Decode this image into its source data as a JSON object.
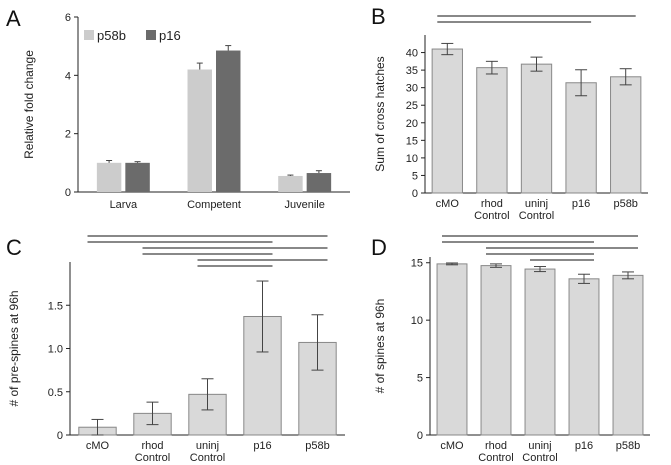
{
  "chart_data": [
    {
      "id": "A",
      "panel_letter": "A",
      "type": "bar",
      "ylabel": "Relative fold change",
      "ylim": [
        0,
        6
      ],
      "yticks": [
        "0",
        "2",
        "4",
        "6"
      ],
      "categories": [
        "Larva",
        "Competent",
        "Juvenile"
      ],
      "series": [
        {
          "name": "p58b",
          "color": "#cccccc",
          "values": [
            1.0,
            4.2,
            0.55
          ],
          "errors": [
            0.08,
            0.22,
            0.03
          ]
        },
        {
          "name": "p16",
          "color": "#6b6b6b",
          "values": [
            1.0,
            4.85,
            0.65
          ],
          "errors": [
            0.04,
            0.17,
            0.08
          ]
        }
      ],
      "legend": "top-left",
      "grid": false
    },
    {
      "id": "B",
      "panel_letter": "B",
      "type": "bar",
      "ylabel": "Sum of cross hatches",
      "ylim": [
        0,
        45
      ],
      "yticks": [
        "0",
        "5",
        "10",
        "15",
        "20",
        "25",
        "30",
        "35",
        "40"
      ],
      "categories": [
        [
          "cMO"
        ],
        [
          "rhod",
          "Control"
        ],
        [
          "uninj",
          "Control"
        ],
        [
          "p16"
        ],
        [
          "p58b"
        ]
      ],
      "series": [
        {
          "color": "#d9d9d9",
          "values": [
            41,
            35.7,
            36.7,
            31.4,
            33.1
          ],
          "errors": [
            1.6,
            1.8,
            2.0,
            3.7,
            2.3
          ]
        }
      ],
      "significance": [
        [
          0,
          4
        ],
        [
          0,
          3
        ]
      ],
      "grid": false
    },
    {
      "id": "C",
      "panel_letter": "C",
      "type": "bar",
      "ylabel": "# of pre-spines at 96h",
      "ylim": [
        0,
        2.0
      ],
      "yticks": [
        "0",
        "0.5",
        "1.0",
        "1.5"
      ],
      "categories": [
        [
          "cMO"
        ],
        [
          "rhod",
          "Control"
        ],
        [
          "uninj",
          "Control"
        ],
        [
          "p16"
        ],
        [
          "p58b"
        ]
      ],
      "series": [
        {
          "color": "#d9d9d9",
          "values": [
            0.09,
            0.25,
            0.47,
            1.37,
            1.07
          ],
          "errors": [
            0.09,
            0.13,
            0.18,
            0.41,
            0.32
          ]
        }
      ],
      "significance": [
        [
          0,
          4
        ],
        [
          0,
          3
        ],
        [
          1,
          4
        ],
        [
          1,
          3
        ],
        [
          2,
          4
        ],
        [
          2,
          3
        ]
      ],
      "grid": false
    },
    {
      "id": "D",
      "panel_letter": "D",
      "type": "bar",
      "ylabel": "# of spines at 96h",
      "ylim": [
        0,
        15.5
      ],
      "yticks": [
        "0",
        "5",
        "10",
        "15"
      ],
      "categories": [
        [
          "cMO"
        ],
        [
          "rhod",
          "Control"
        ],
        [
          "uninj",
          "Control"
        ],
        [
          "p16"
        ],
        [
          "p58b"
        ]
      ],
      "series": [
        {
          "color": "#d9d9d9",
          "values": [
            14.9,
            14.75,
            14.45,
            13.6,
            13.9
          ],
          "errors": [
            0.08,
            0.15,
            0.22,
            0.4,
            0.3
          ]
        }
      ],
      "significance": [
        [
          0,
          4
        ],
        [
          0,
          3
        ],
        [
          1,
          4
        ],
        [
          1,
          3
        ],
        [
          2,
          3
        ]
      ],
      "grid": false
    }
  ]
}
